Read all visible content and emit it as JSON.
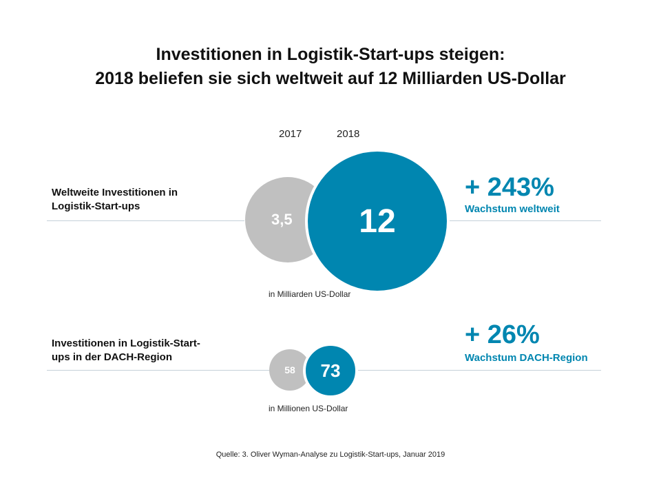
{
  "title": {
    "line1": "Investitionen in Logistik-Start-ups steigen:",
    "line2": "2018 beliefen sie sich weltweit auf 12 Milliarden US-Dollar"
  },
  "years": [
    "2017",
    "2018"
  ],
  "chart_data": [
    {
      "type": "bubble",
      "row_label_lines": [
        "Weltweite Investitionen in",
        "Logistik-Start-ups"
      ],
      "categories": [
        "2017",
        "2018"
      ],
      "values": [
        3.5,
        12
      ],
      "value_labels": [
        "3,5",
        "12"
      ],
      "unit_label": "in Milliarden US-Dollar",
      "growth": "+ 243%",
      "growth_label": "Wachstum weltweit"
    },
    {
      "type": "bubble",
      "row_label_lines": [
        "Investitionen in Logistik-Start-",
        "ups in der DACH-Region"
      ],
      "categories": [
        "2017",
        "2018"
      ],
      "values": [
        58,
        73
      ],
      "value_labels": [
        "58",
        "73"
      ],
      "unit_label": "in Millionen US-Dollar",
      "growth": "+ 26%",
      "growth_label": "Wachstum DACH-Region"
    }
  ],
  "colors": {
    "year_2017": "#c0c0c0",
    "year_2018": "#0086b0",
    "accent": "#0086b0"
  },
  "source": "Quelle: 3. Oliver Wyman-Analyse zu Logistik-Start-ups, Januar 2019"
}
